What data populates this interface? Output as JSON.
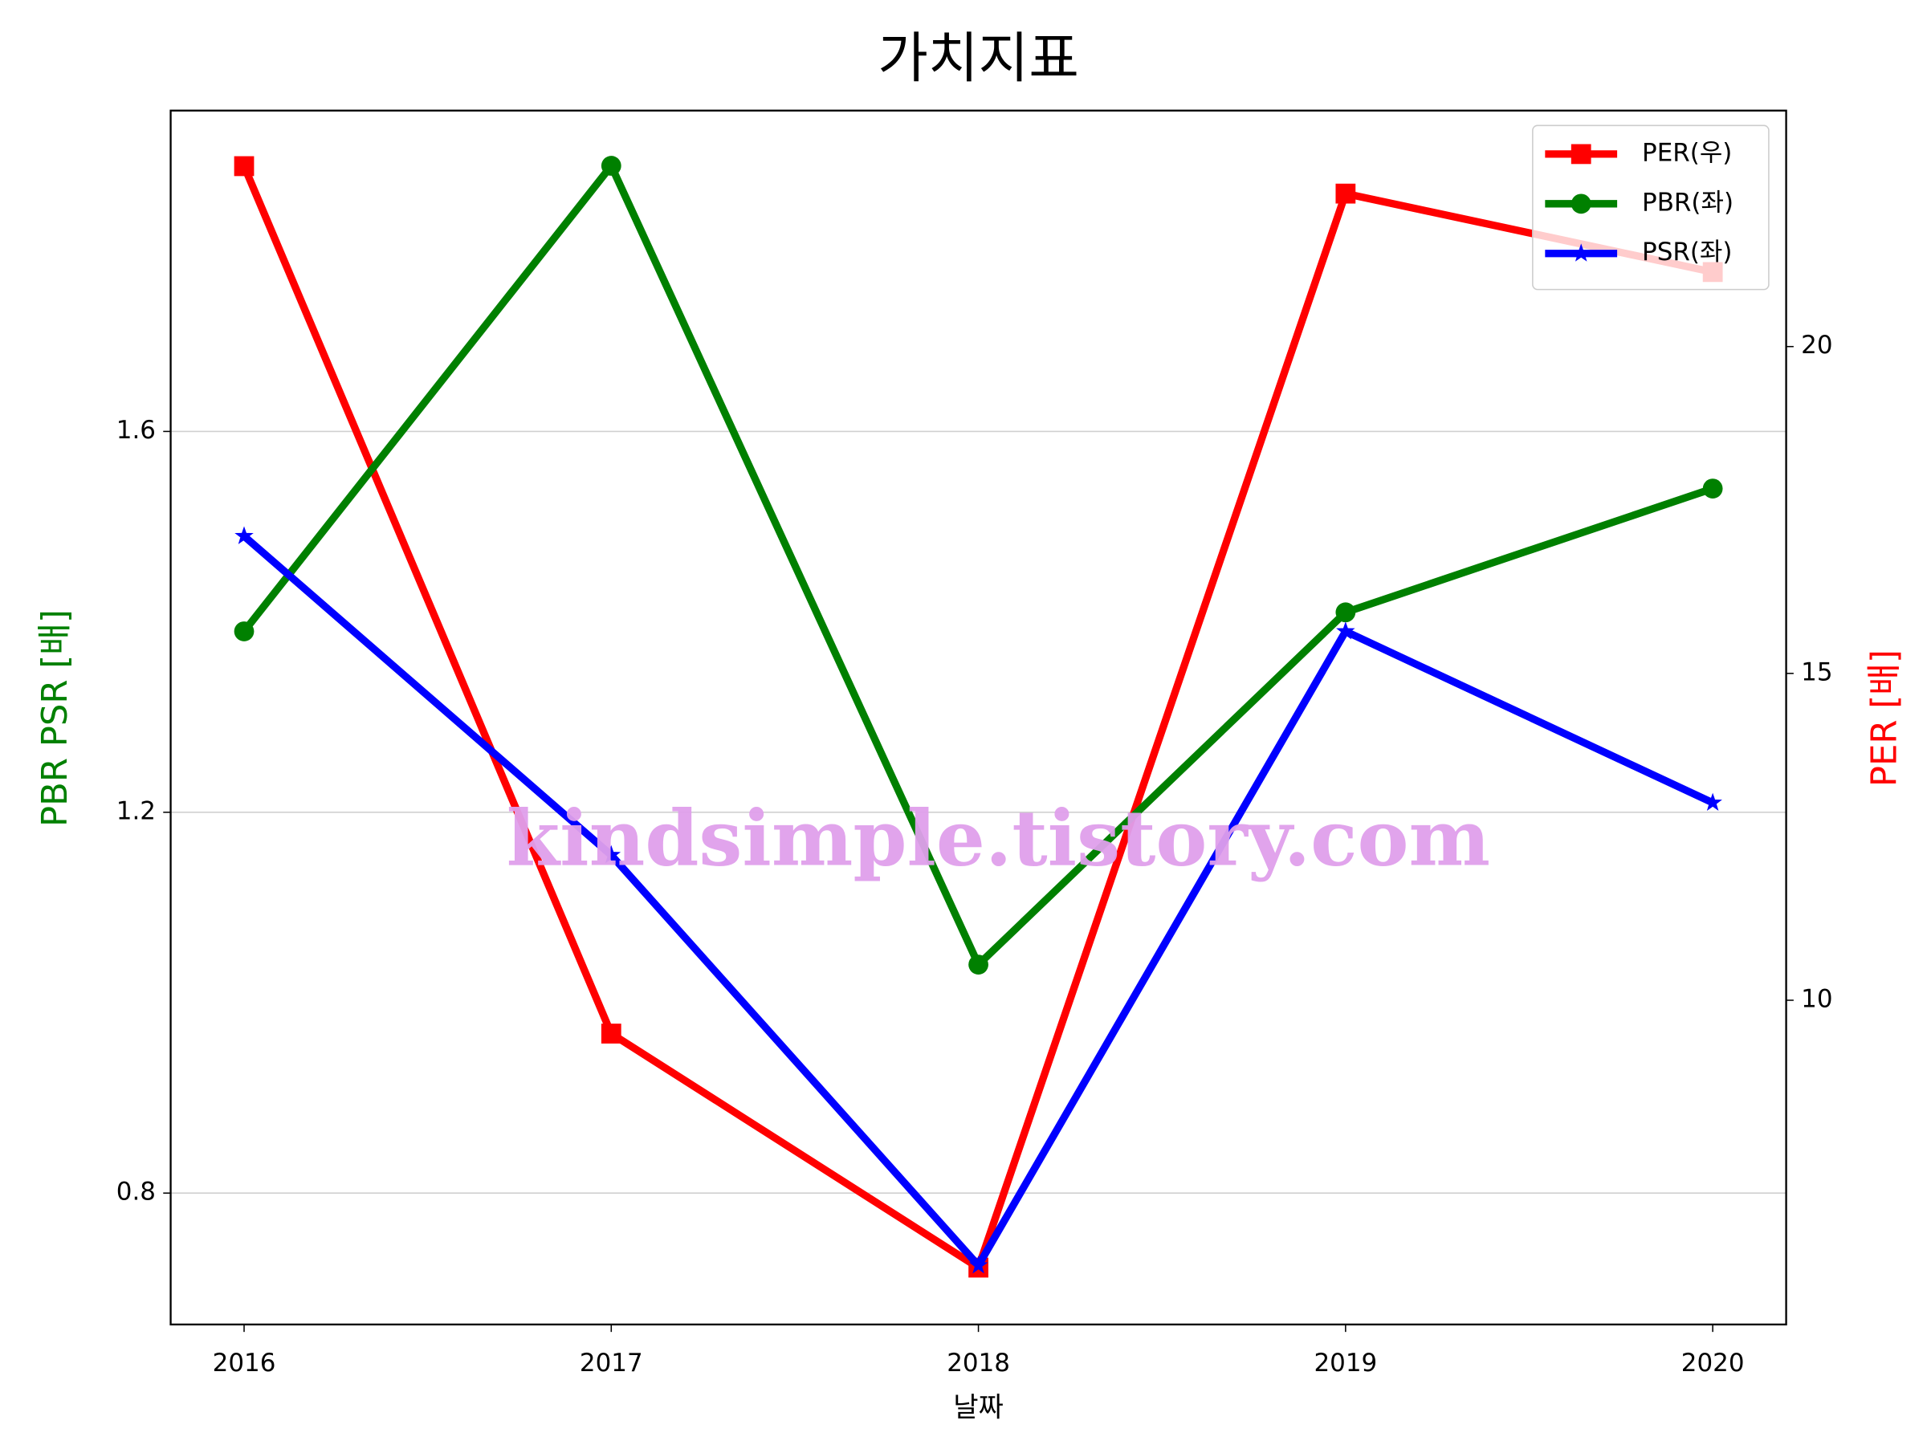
{
  "chart_data": {
    "type": "line",
    "title": "가치지표",
    "xlabel": "날짜",
    "ylabel": "PBR PSR [배]",
    "y2label": "PER [배]",
    "watermark": "kindsimple.tistory.com",
    "x": [
      2016,
      2017,
      2018,
      2019,
      2020
    ],
    "xlim": [
      2015.8,
      2020.2
    ],
    "xticks": [
      2016,
      2017,
      2018,
      2019,
      2020
    ],
    "ylim": [
      0.662,
      1.937
    ],
    "yticks": [
      0.8,
      1.2,
      1.6
    ],
    "y2lim": [
      5.04,
      23.61
    ],
    "y2ticks": [
      10,
      15,
      20
    ],
    "grid": true,
    "legend": "upper right",
    "series": [
      {
        "name": "PER(우)",
        "color": "#ff0000",
        "marker": "square",
        "axis": "y2",
        "values": [
          22.76,
          9.49,
          5.91,
          22.34,
          21.14
        ]
      },
      {
        "name": "PBR(좌)",
        "color": "#008000",
        "marker": "circle",
        "values": [
          1.39,
          1.879,
          1.04,
          1.41,
          1.54
        ]
      },
      {
        "name": "PSR(좌)",
        "color": "#0000ff",
        "marker": "star",
        "values": [
          1.49,
          1.155,
          0.724,
          1.39,
          1.21
        ]
      }
    ]
  }
}
